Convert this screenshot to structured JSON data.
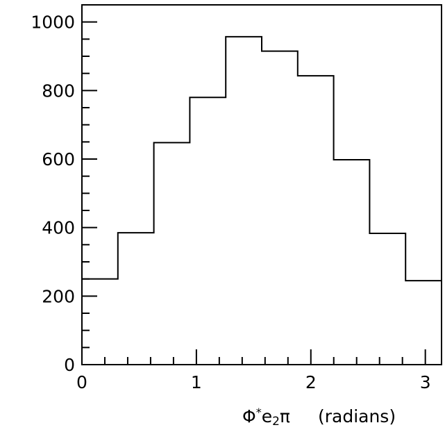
{
  "chart_data": {
    "type": "histogram",
    "title": "",
    "xlabel": {
      "phi": "Φ",
      "star": "*",
      "e": "e",
      "sub": "2",
      "pi": "π",
      "units": "(radians)"
    },
    "ylabel": "",
    "xlim": [
      0,
      3.14159
    ],
    "ylim": [
      0,
      1050
    ],
    "x_ticks": [
      {
        "value": 0,
        "label": "0"
      },
      {
        "value": 1,
        "label": "1"
      },
      {
        "value": 2,
        "label": "2"
      },
      {
        "value": 3,
        "label": "3"
      }
    ],
    "y_ticks": [
      {
        "value": 0,
        "label": "0"
      },
      {
        "value": 200,
        "label": "200"
      },
      {
        "value": 400,
        "label": "400"
      },
      {
        "value": 600,
        "label": "600"
      },
      {
        "value": 800,
        "label": "800"
      },
      {
        "value": 1000,
        "label": "1000"
      }
    ],
    "x_minor_step": 0.2,
    "y_minor_step": 50,
    "bin_edges": [
      0,
      0.314159,
      0.628319,
      0.942478,
      1.256637,
      1.570796,
      1.884956,
      2.199115,
      2.513274,
      2.827433,
      3.141593
    ],
    "values": [
      250,
      385,
      648,
      780,
      957,
      915,
      843,
      598,
      383,
      245
    ],
    "grid": false,
    "line_color": "#000000"
  }
}
